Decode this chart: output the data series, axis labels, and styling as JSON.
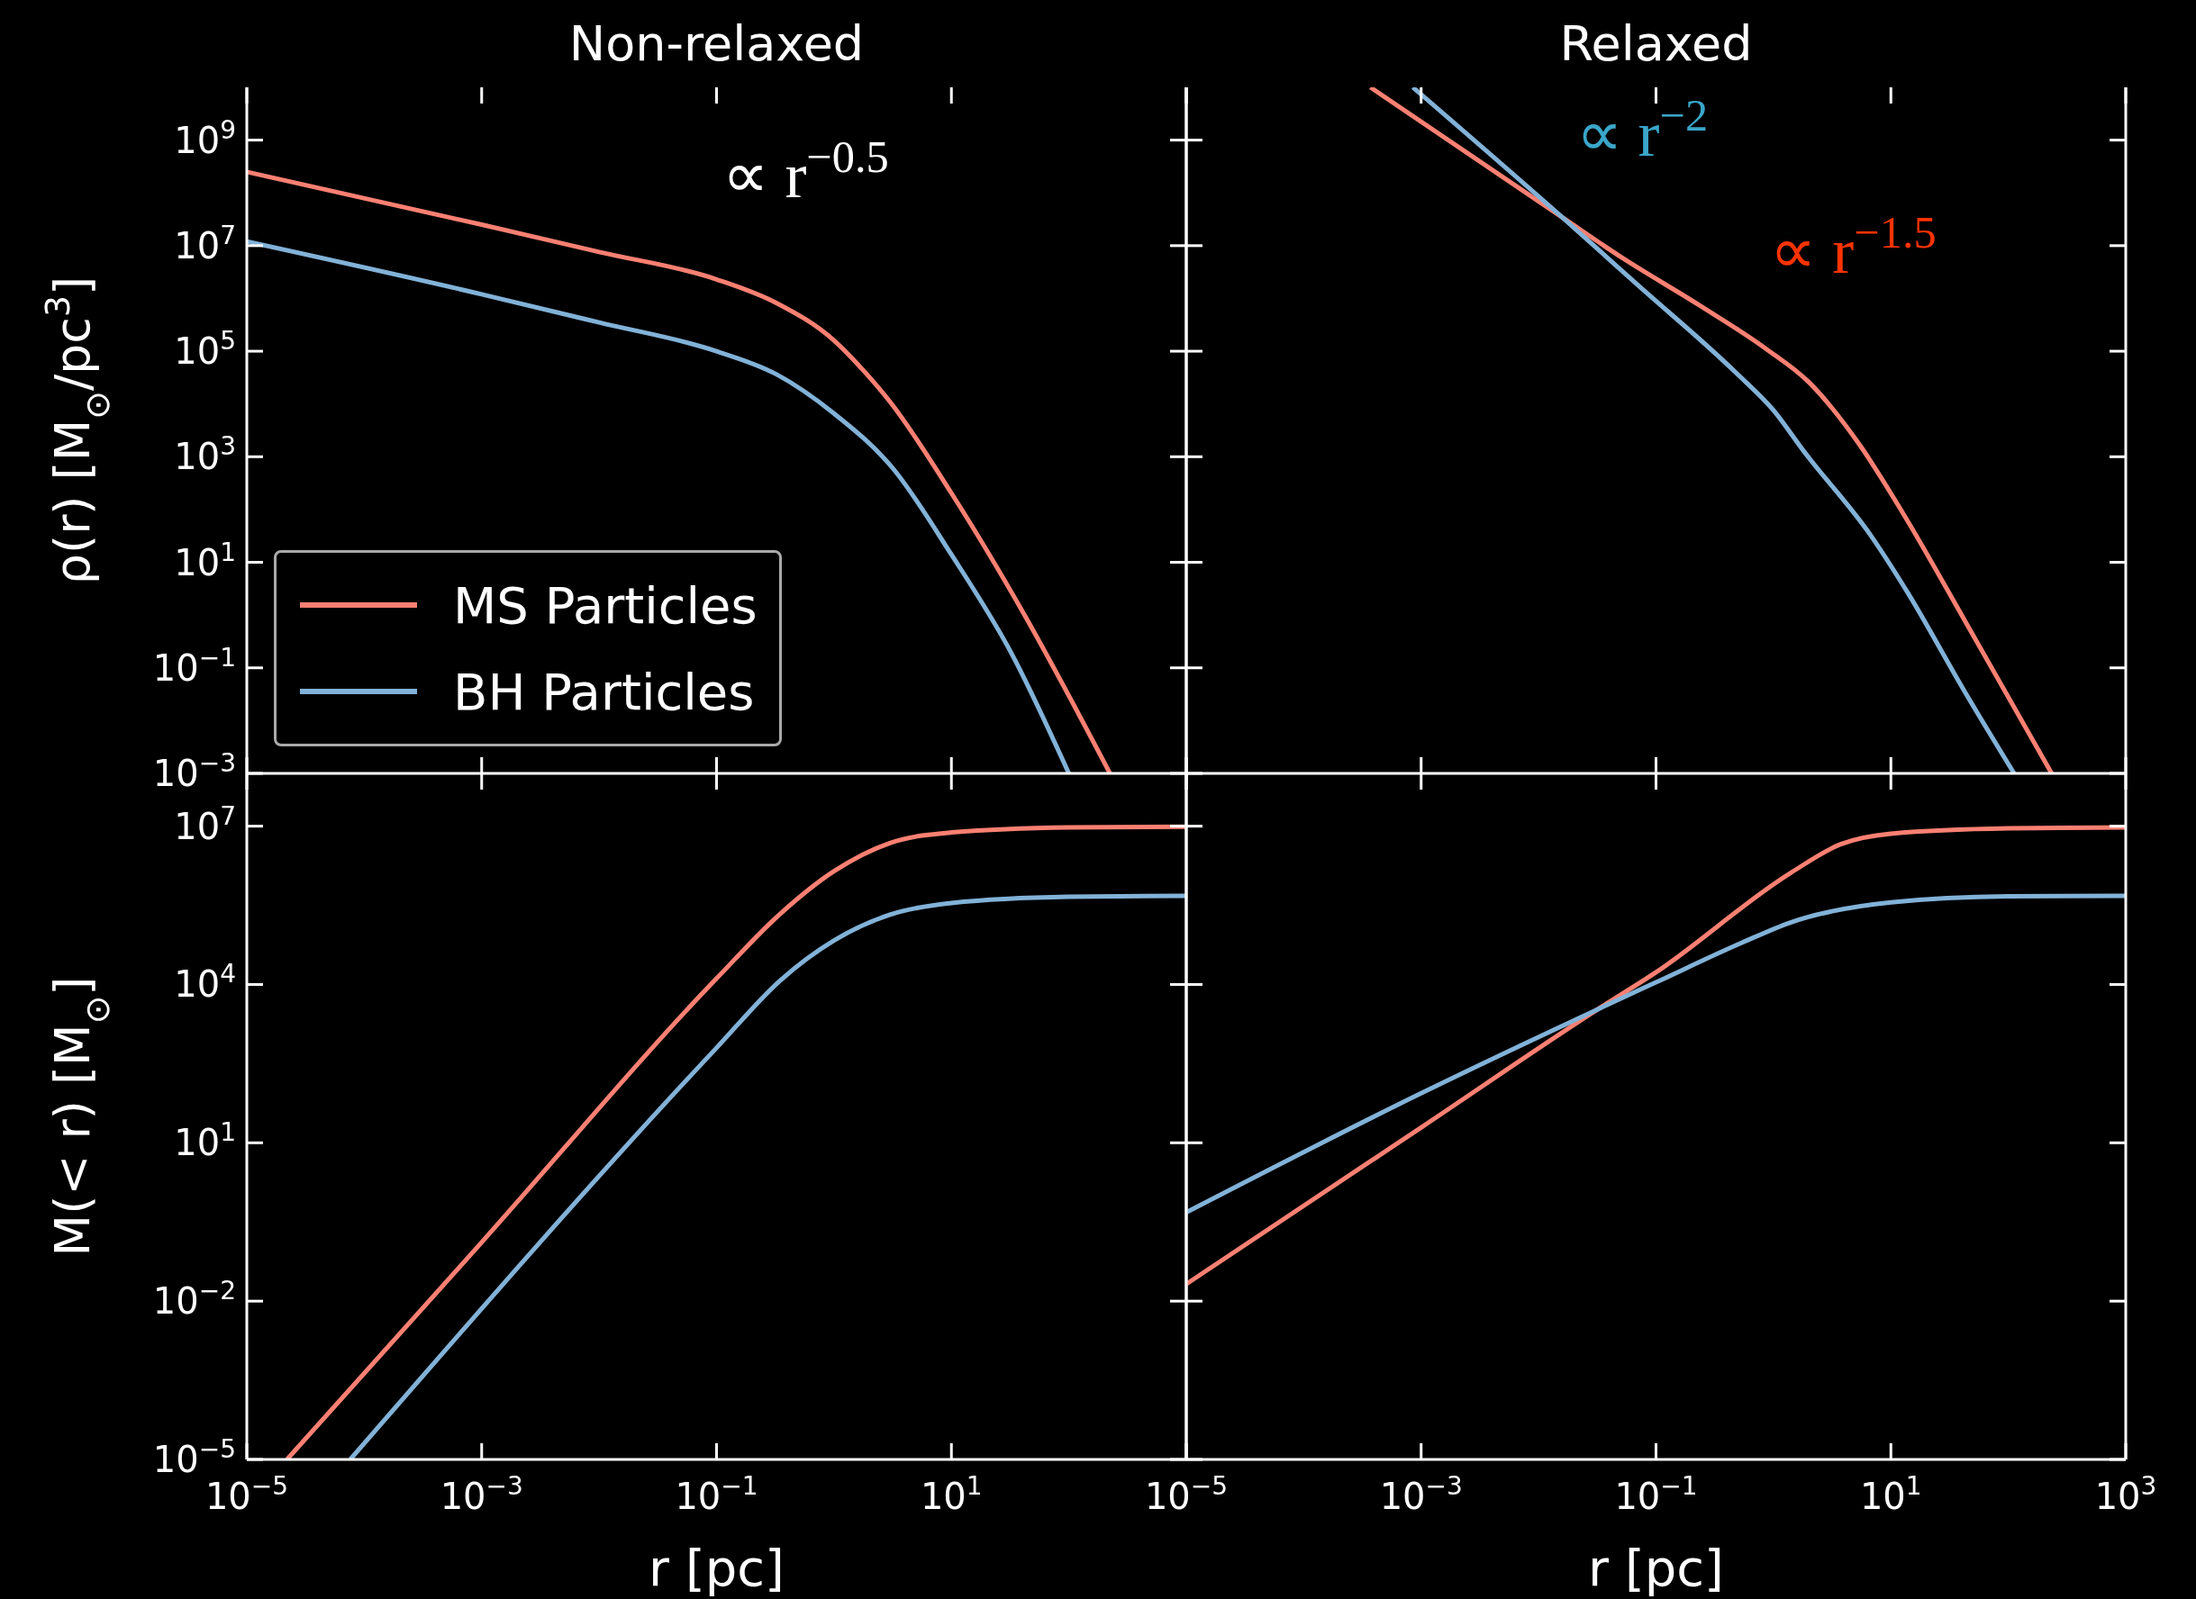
{
  "chart_data": [
    {
      "type": "line",
      "title": "Non-relaxed",
      "ylabel": "ρ(r) [M$_{⊙}$/pc$^{3}$]",
      "log": "xy",
      "legend": "bottom left",
      "tick_labels": "y",
      "xlim": [
        1e-05,
        1000
      ],
      "ylim": [
        0.001,
        10000000000.0
      ],
      "xticks": [
        {
          "value": 1e-05,
          "label": null
        },
        {
          "value": 0.001,
          "label": null
        },
        {
          "value": 0.1,
          "label": null
        },
        {
          "value": 10,
          "label": null
        },
        {
          "value": 1000,
          "label": null
        }
      ],
      "yticks": [
        {
          "value": 0.001,
          "label": "10$^{−3}$"
        },
        {
          "value": 0.1,
          "label": "10$^{−1}$"
        },
        {
          "value": 10,
          "label": "10$^{1}$"
        },
        {
          "value": 1000,
          "label": "10$^{3}$"
        },
        {
          "value": 100000,
          "label": "10$^{5}$"
        },
        {
          "value": 10000000.0,
          "label": "10$^{7}$"
        },
        {
          "value": 1000000000.0,
          "label": "10$^{9}$"
        }
      ],
      "annotations": [
        "∝ r$^{−0.5}$"
      ],
      "series": [
        {
          "name": "MS Particles",
          "color": "#fa8072",
          "x": [
            1e-05,
            0.001,
            0.01,
            0.1,
            0.32,
            1,
            1.8,
            3,
            10,
            42,
            224
          ],
          "values": [
            250000000.0,
            25000000.0,
            7600000.0,
            2300000.0,
            830000.0,
            160000.0,
            42000.0,
            11000.0,
            204,
            1,
            0.001
          ]
        },
        {
          "name": "BH Particles",
          "color": "#82b2d8",
          "x": [
            1e-05,
            0.001,
            0.01,
            0.1,
            0.32,
            1,
            3.2,
            10,
            32,
            100
          ],
          "values": [
            12000000.0,
            1200000.0,
            350000.0,
            100000.0,
            37000.0,
            6600,
            590,
            14,
            0.2,
            0.001
          ]
        }
      ]
    },
    {
      "type": "line",
      "title": "Relaxed",
      "log": "xy",
      "tick_labels": false,
      "xlim": [
        1e-05,
        1000
      ],
      "ylim": [
        0.001,
        10000000000.0
      ],
      "xticks": [
        {
          "value": 1e-05,
          "label": null
        },
        {
          "value": 0.001,
          "label": null
        },
        {
          "value": 0.1,
          "label": null
        },
        {
          "value": 10,
          "label": null
        },
        {
          "value": 1000,
          "label": null
        }
      ],
      "yticks": [
        {
          "value": 0.001,
          "label": null
        },
        {
          "value": 0.1,
          "label": null
        },
        {
          "value": 10,
          "label": null
        },
        {
          "value": 1000,
          "label": null
        },
        {
          "value": 100000,
          "label": null
        },
        {
          "value": 10000000.0,
          "label": null
        },
        {
          "value": 1000000000.0,
          "label": null
        }
      ],
      "annotations": [
        "∝ r$^{−2}$",
        "∝ r$^{−1.5}$"
      ],
      "series": [
        {
          "color": "#fa8072",
          "x": [
            0.00037,
            0.016,
            0.052,
            0.23,
            0.87,
            2,
            5.4,
            12.6,
            43,
            234
          ],
          "values": [
            10000000000.0,
            34000000.0,
            5800000.0,
            760000.0,
            110000.0,
            26000.0,
            1700,
            87,
            0.76,
            0.001
          ]
        },
        {
          "color": "#82b2d8",
          "x": [
            0.00085,
            0.016,
            0.068,
            0.48,
            1,
            1.8,
            6.9,
            14,
            43,
            112
          ],
          "values": [
            10000000000.0,
            34000000.0,
            1900000.0,
            39000.0,
            7600,
            1300,
            30,
            2.6,
            0.034,
            0.001
          ]
        }
      ]
    },
    {
      "type": "line",
      "xlabel": "r [pc]",
      "ylabel": "M(< r) [M$_{⊙}$]",
      "log": "xy",
      "xlim": [
        1e-05,
        1000
      ],
      "ylim": [
        1e-05,
        100000000.0
      ],
      "xticks": [
        {
          "value": 1e-05,
          "label": "10$^{−5}$"
        },
        {
          "value": 0.001,
          "label": "10$^{−3}$"
        },
        {
          "value": 0.1,
          "label": "10$^{−1}$"
        },
        {
          "value": 10,
          "label": "10$^{1}$"
        },
        {
          "value": 1000,
          "label": null
        }
      ],
      "yticks": [
        {
          "value": 1e-05,
          "label": "10$^{−5}$"
        },
        {
          "value": 0.01,
          "label": "10$^{−2}$"
        },
        {
          "value": 10,
          "label": "10$^{1}$"
        },
        {
          "value": 10000,
          "label": "10$^{4}$"
        },
        {
          "value": 10000000.0,
          "label": "10$^{7}$"
        }
      ],
      "series": [
        {
          "color": "#fa8072",
          "x": [
            2.2e-05,
            0.001,
            0.1,
            0.35,
            1,
            3,
            10,
            100,
            1000
          ],
          "values": [
            1e-05,
            0.13,
            13000.0,
            220000.0,
            1400000.0,
            4800000.0,
            7600000.0,
            9500000.0,
            9800000.0
          ]
        },
        {
          "color": "#82b2d8",
          "x": [
            7.6e-05,
            0.1,
            0.35,
            1,
            3,
            10,
            100,
            1000
          ],
          "values": [
            1e-05,
            630,
            12000.0,
            68000.0,
            210000.0,
            350000.0,
            460000.0,
            480000.0
          ]
        }
      ]
    },
    {
      "type": "line",
      "xlabel": "r [pc]",
      "log": "xy",
      "tick_labels": "x",
      "xlim": [
        1e-05,
        1000
      ],
      "ylim": [
        1e-05,
        100000000.0
      ],
      "xticks": [
        {
          "value": 1e-05,
          "label": "10$^{−5}$"
        },
        {
          "value": 0.001,
          "label": "10$^{−3}$"
        },
        {
          "value": 0.1,
          "label": "10$^{−1}$"
        },
        {
          "value": 10,
          "label": "10$^{1}$"
        },
        {
          "value": 1000,
          "label": "10$^{3}$"
        }
      ],
      "yticks": [
        {
          "value": 1e-05,
          "label": null
        },
        {
          "value": 0.01,
          "label": null
        },
        {
          "value": 10,
          "label": null
        },
        {
          "value": 10000,
          "label": null
        },
        {
          "value": 10000000.0,
          "label": null
        }
      ],
      "series": [
        {
          "color": "#fa8072",
          "x": [
            1e-05,
            0.001,
            0.032,
            0.1,
            1.4,
            3.7,
            10,
            100,
            1000
          ],
          "values": [
            0.021,
            19.5,
            3400,
            17000.0,
            1300000.0,
            4500000.0,
            7200000.0,
            9100000.0,
            9500000.0
          ]
        },
        {
          "color": "#82b2d8",
          "x": [
            1e-05,
            0.001,
            0.032,
            0.1,
            0.54,
            1.4,
            10,
            100,
            1000
          ],
          "values": [
            0.48,
            87,
            3400,
            11000.0,
            62000.0,
            150000.0,
            360000.0,
            470000.0,
            480000.0
          ]
        }
      ]
    }
  ]
}
